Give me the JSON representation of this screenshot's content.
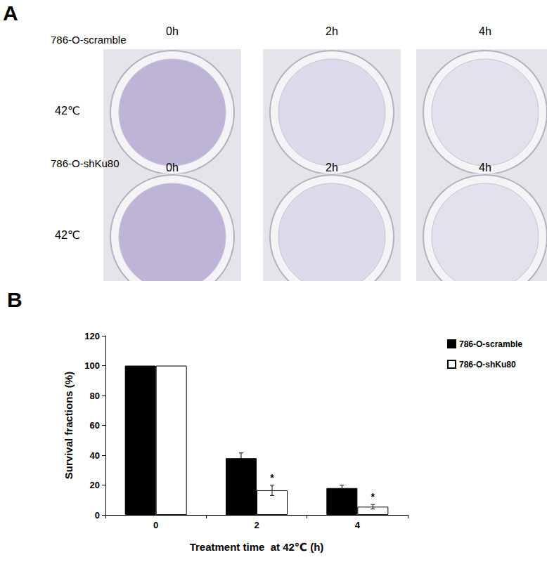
{
  "panel_labels": [
    "A",
    "B"
  ],
  "photo_panel": {
    "rows": [
      {
        "name": "786-O-scramble",
        "condition": "42℃",
        "times": [
          "0h",
          "2h",
          "4h"
        ]
      },
      {
        "name": "786-O-shKu80",
        "condition": "42℃",
        "times": [
          "0h",
          "2h",
          "4h"
        ]
      }
    ]
  },
  "chart_data": {
    "type": "bar",
    "xlabel": "Treatment time  at 42℃ (h)",
    "ylabel": "Survival fractions (%)",
    "categories": [
      "0",
      "2",
      "4"
    ],
    "series": [
      {
        "name": "786-O-scramble",
        "color": "#000000",
        "values": [
          100,
          38,
          18
        ],
        "errors": [
          null,
          3.5,
          2
        ],
        "annotations": [
          null,
          null,
          null
        ]
      },
      {
        "name": "786-O-shKu80",
        "color": "#ffffff",
        "values": [
          100,
          16.5,
          5.5
        ],
        "errors": [
          null,
          3.5,
          1.5
        ],
        "annotations": [
          null,
          "*",
          "*"
        ]
      }
    ],
    "ylim": [
      0,
      120
    ],
    "yticks": [
      0,
      20,
      40,
      60,
      80,
      100,
      120
    ],
    "grid": false,
    "legend": "top-right"
  }
}
